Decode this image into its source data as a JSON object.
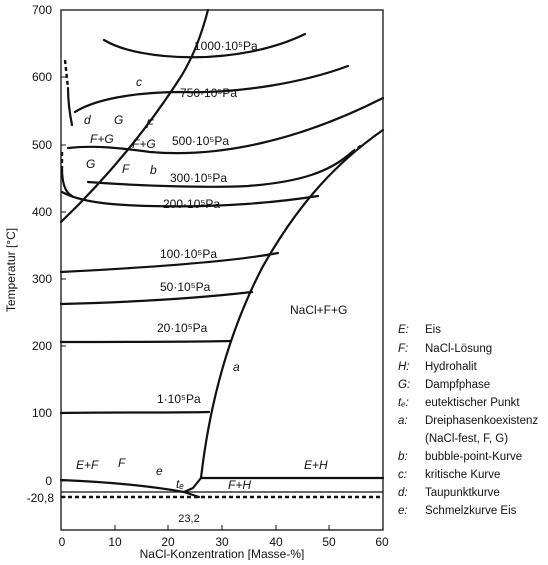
{
  "chart_data": {
    "type": "phase-diagram",
    "xlabel": "NaCl-Konzentration [Masse-%]",
    "ylabel": "Temperatur [°C]",
    "xlim": [
      0,
      60
    ],
    "ylim": [
      -30,
      700
    ],
    "x_ticks": [
      "0",
      "10",
      "20",
      "30",
      "40",
      "50",
      "60"
    ],
    "y_ticks": [
      "0",
      "100",
      "200",
      "300",
      "400",
      "500",
      "600",
      "700"
    ],
    "extra_y_tick": "-20,8",
    "extra_x_tick": "23,2",
    "isobar_labels": [
      "1000·10⁵Pa",
      "750·10⁵Pa",
      "500·10⁵Pa",
      "300·10⁵Pa",
      "200·10⁵Pa",
      "100·10⁵Pa",
      "50·10⁵Pa",
      "20·10⁵Pa",
      "1·10⁵Pa"
    ],
    "region_labels": {
      "c": "c",
      "d": "d",
      "G_upper": "G",
      "F_upper": "F",
      "FG_left": "F+G",
      "FG_right": "F+G",
      "G_lower": "G",
      "F_lower": "F",
      "b": "b",
      "a": "a",
      "NaCl_FG": "NaCl+F+G",
      "EF": "E+F",
      "F_bottom": "F",
      "e": "e",
      "te": "tₑ",
      "FH": "F+H",
      "EH": "E+H"
    },
    "legend": [
      {
        "symbol": "E:",
        "text": "Eis"
      },
      {
        "symbol": "F:",
        "text": "NaCl-Lösung"
      },
      {
        "symbol": "H:",
        "text": "Hydrohalit"
      },
      {
        "symbol": "G:",
        "text": "Dampfphase"
      },
      {
        "symbol": "tₑ:",
        "text": "eutektischer Punkt"
      },
      {
        "symbol": "a:",
        "text": "Dreiphasenkoexistenz"
      },
      {
        "symbol": "",
        "text": "(NaCl-fest, F, G)"
      },
      {
        "symbol": "b:",
        "text": "bubble-point-Kurve"
      },
      {
        "symbol": "c:",
        "text": "kritische Kurve"
      },
      {
        "symbol": "d:",
        "text": "Taupunktkurve"
      },
      {
        "symbol": "e:",
        "text": "Schmelzkurve Eis"
      }
    ]
  }
}
